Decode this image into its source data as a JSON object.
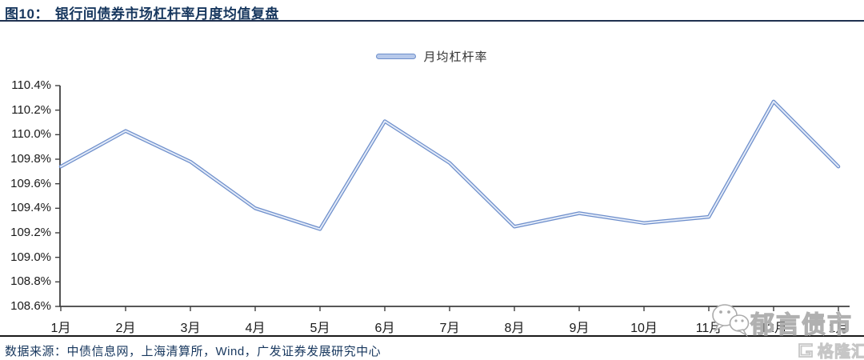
{
  "header": {
    "figure_label": "图10：",
    "title": "银行间债券市场杠杆率月度均值复盘"
  },
  "legend": {
    "label": "月均杠杆率"
  },
  "footer": {
    "source": "数据来源：中债信息网，上海清算所，Wind，广发证券发展研究中心"
  },
  "watermark": {
    "wechat_name": "郁言债市",
    "logo_name": "格隆汇"
  },
  "colors": {
    "navy": "#17375E",
    "axis": "#404040",
    "line_outer": "#6d8ecb",
    "line_inner": "#e2eaf8",
    "legend_fill": "#b7c9ea",
    "watermark_gray": "#b0b0b0",
    "logo_gray": "#c6c6c6"
  },
  "chart_data": {
    "type": "line",
    "title": "银行间债券市场杠杆率月度均值复盘",
    "categories": [
      "1月",
      "2月",
      "3月",
      "4月",
      "5月",
      "6月",
      "7月",
      "8月",
      "9月",
      "10月",
      "11月",
      "12月",
      "1月"
    ],
    "series": [
      {
        "name": "月均杠杆率",
        "values": [
          109.74,
          110.03,
          109.78,
          109.4,
          109.23,
          110.11,
          109.77,
          109.25,
          109.36,
          109.28,
          109.33,
          110.27,
          109.74
        ]
      }
    ],
    "ylim": [
      108.6,
      110.4
    ],
    "ytick_step": 0.2,
    "ytick_labels": [
      "110.4%",
      "110.2%",
      "110.0%",
      "109.8%",
      "109.6%",
      "109.4%",
      "109.2%",
      "109.0%",
      "108.8%",
      "108.6%"
    ],
    "xlabel": "",
    "ylabel": "",
    "grid": false,
    "legend_position": "top-center"
  }
}
